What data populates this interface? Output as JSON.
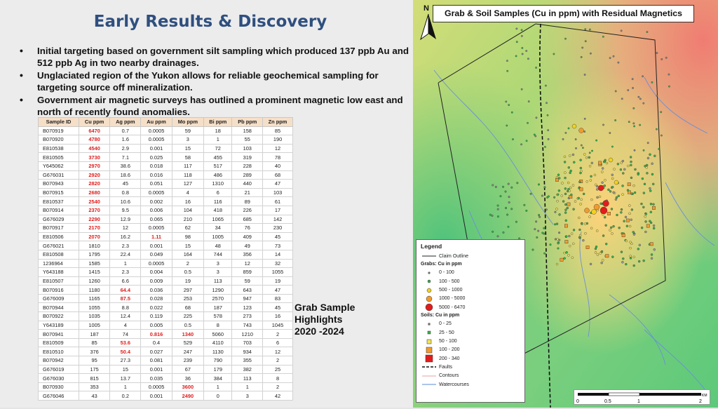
{
  "slide": {
    "title": "Early Results & Discovery",
    "bullets": [
      "Initial targeting based on government silt sampling which produced 137 ppb Au and 512 ppb Ag in two nearby drainages.",
      "Unglaciated region of the Yukon allows for reliable geochemical sampling for targeting source off mineralization.",
      "Government air magnetic surveys has outlined a prominent magnetic low east and north of recently found anomalies."
    ],
    "caption": [
      "Grab Sample",
      "Highlights",
      "2020 -2024"
    ]
  },
  "table": {
    "headers": [
      "Sample ID",
      "Cu ppm",
      "Ag ppm",
      "Au ppm",
      "Mo ppm",
      "Bi ppm",
      "Pb ppm",
      "Zn ppm"
    ],
    "highlight_color": "#e01b1b",
    "rows": [
      [
        "B070919",
        "6470",
        "0.7",
        "0.0005",
        "59",
        "18",
        "158",
        "85"
      ],
      [
        "B070920",
        "4780",
        "1.6",
        "0.0005",
        "3",
        "1",
        "55",
        "190"
      ],
      [
        "E810538",
        "4540",
        "2.9",
        "0.001",
        "15",
        "72",
        "103",
        "12"
      ],
      [
        "E810505",
        "3730",
        "7.1",
        "0.025",
        "58",
        "455",
        "319",
        "78"
      ],
      [
        "Y645062",
        "2970",
        "38.6",
        "0.018",
        "117",
        "517",
        "228",
        "40"
      ],
      [
        "G676031",
        "2920",
        "18.6",
        "0.016",
        "118",
        "486",
        "289",
        "68"
      ],
      [
        "B070943",
        "2820",
        "45",
        "0.051",
        "127",
        "1310",
        "440",
        "47"
      ],
      [
        "B070915",
        "2680",
        "0.8",
        "0.0005",
        "4",
        "6",
        "21",
        "103"
      ],
      [
        "E810537",
        "2540",
        "10.6",
        "0.002",
        "16",
        "116",
        "89",
        "61"
      ],
      [
        "B070914",
        "2370",
        "9.5",
        "0.006",
        "104",
        "418",
        "226",
        "17"
      ],
      [
        "G676029",
        "2290",
        "12.9",
        "0.065",
        "210",
        "1065",
        "685",
        "142"
      ],
      [
        "B070917",
        "2170",
        "12",
        "0.0005",
        "62",
        "34",
        "76",
        "230"
      ],
      [
        "E810506",
        "2070",
        "16.2",
        "1.11",
        "98",
        "1005",
        "409",
        "45"
      ],
      [
        "G676021",
        "1810",
        "2.3",
        "0.001",
        "15",
        "48",
        "49",
        "73"
      ],
      [
        "E810508",
        "1795",
        "22.4",
        "0.049",
        "164",
        "744",
        "356",
        "14"
      ],
      [
        "1236964",
        "1585",
        "1",
        "0.0005",
        "2",
        "3",
        "12",
        "32"
      ],
      [
        "Y643188",
        "1415",
        "2.3",
        "0.004",
        "0.5",
        "3",
        "859",
        "1055"
      ],
      [
        "E810507",
        "1260",
        "6.6",
        "0.009",
        "19",
        "113",
        "59",
        "19"
      ],
      [
        "B070916",
        "1180",
        "64.4",
        "0.036",
        "297",
        "1290",
        "643",
        "47"
      ],
      [
        "G676009",
        "1165",
        "87.5",
        "0.028",
        "253",
        "2570",
        "947",
        "83"
      ],
      [
        "B070944",
        "1055",
        "8.8",
        "0.022",
        "68",
        "187",
        "123",
        "45"
      ],
      [
        "B070922",
        "1035",
        "12.4",
        "0.119",
        "225",
        "578",
        "273",
        "16"
      ],
      [
        "Y643189",
        "1005",
        "4",
        "0.005",
        "0.5",
        "8",
        "743",
        "1045"
      ],
      [
        "B070941",
        "187",
        "74",
        "0.816",
        "1340",
        "5060",
        "1210",
        "2"
      ],
      [
        "E810509",
        "85",
        "53.6",
        "0.4",
        "529",
        "4110",
        "703",
        "6"
      ],
      [
        "E810510",
        "376",
        "50.4",
        "0.027",
        "247",
        "1130",
        "934",
        "12"
      ],
      [
        "B070942",
        "95",
        "27.3",
        "0.081",
        "239",
        "790",
        "355",
        "2"
      ],
      [
        "G676019",
        "175",
        "15",
        "0.001",
        "67",
        "179",
        "382",
        "25"
      ],
      [
        "G676030",
        "815",
        "13.7",
        "0.035",
        "36",
        "384",
        "113",
        "8"
      ],
      [
        "B070930",
        "353",
        "1",
        "0.0005",
        "3600",
        "1",
        "1",
        "2"
      ],
      [
        "G676046",
        "43",
        "0.2",
        "0.001",
        "2490",
        "0",
        "3",
        "42"
      ]
    ],
    "highlighted": [
      [
        0,
        1
      ],
      [
        1,
        1
      ],
      [
        2,
        1
      ],
      [
        3,
        1
      ],
      [
        4,
        1
      ],
      [
        5,
        1
      ],
      [
        6,
        1
      ],
      [
        7,
        1
      ],
      [
        8,
        1
      ],
      [
        9,
        1
      ],
      [
        10,
        1
      ],
      [
        11,
        1
      ],
      [
        12,
        1
      ],
      [
        12,
        3
      ],
      [
        18,
        2
      ],
      [
        19,
        2
      ],
      [
        23,
        3
      ],
      [
        23,
        4
      ],
      [
        24,
        2
      ],
      [
        25,
        2
      ],
      [
        29,
        4
      ],
      [
        30,
        4
      ]
    ]
  },
  "map": {
    "title": "Grab & Soil Samples (Cu in ppm) with Residual Magnetics",
    "north_label": "N",
    "legend": {
      "heading": "Legend",
      "claim": "Claim Outline",
      "grabs_heading": "Grabs: Cu in ppm",
      "grabs": [
        "0 - 100",
        "100 - 500",
        "500 - 1000",
        "1000 - 5000",
        "5000 - 6470"
      ],
      "soils_heading": "Soils: Cu in ppm",
      "soils": [
        "0 - 25",
        "25 - 50",
        "50 - 100",
        "100 - 200",
        "200 - 340"
      ],
      "faults": "Faults",
      "contours": "Contours",
      "watercourses": "Watercourses"
    },
    "scale": {
      "ticks": [
        "0",
        "0.5",
        "1",
        "2"
      ],
      "unit": "KM"
    },
    "colors": {
      "high_mag": "#f08a78",
      "mid_mag": "#d8d27a",
      "low_mag": "#6fcf80",
      "grab_low": "#7a7a7a",
      "grab_100": "#3ab54a",
      "grab_500": "#f2d21b",
      "grab_1000": "#f29b2c",
      "grab_5000": "#e21c1c",
      "watercourse": "#5b8bd6"
    }
  }
}
